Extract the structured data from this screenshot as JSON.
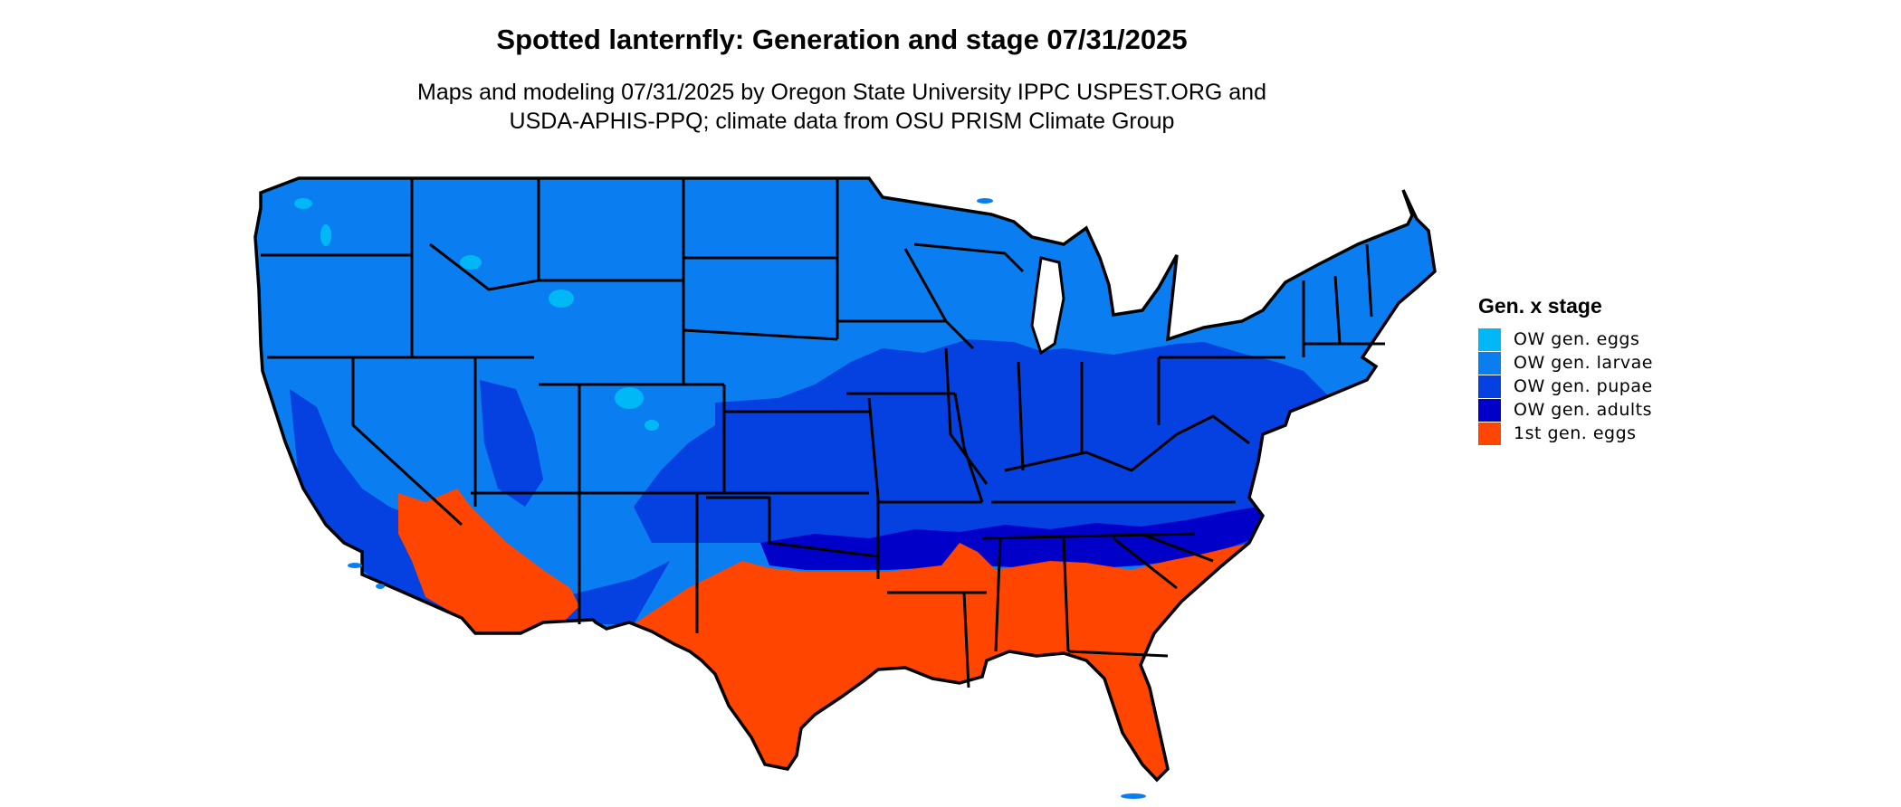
{
  "header": {
    "title": "Spotted lanternfly: Generation and stage 07/31/2025",
    "subtitle_line1": "Maps and modeling 07/31/2025 by Oregon State University IPPC USPEST.ORG and",
    "subtitle_line2": "USDA-APHIS-PPQ; climate data from OSU PRISM Climate Group"
  },
  "legend": {
    "title": "Gen. x stage",
    "items": [
      {
        "label": "OW gen. eggs",
        "color": "#00b8f5"
      },
      {
        "label": "OW gen. larvae",
        "color": "#0a7ef0"
      },
      {
        "label": "OW gen. pupae",
        "color": "#0540e0"
      },
      {
        "label": "OW gen. adults",
        "color": "#0000c8"
      },
      {
        "label": "1st gen. eggs",
        "color": "#ff4500"
      }
    ]
  },
  "colors": {
    "border": "#000000",
    "background": "#ffffff"
  }
}
